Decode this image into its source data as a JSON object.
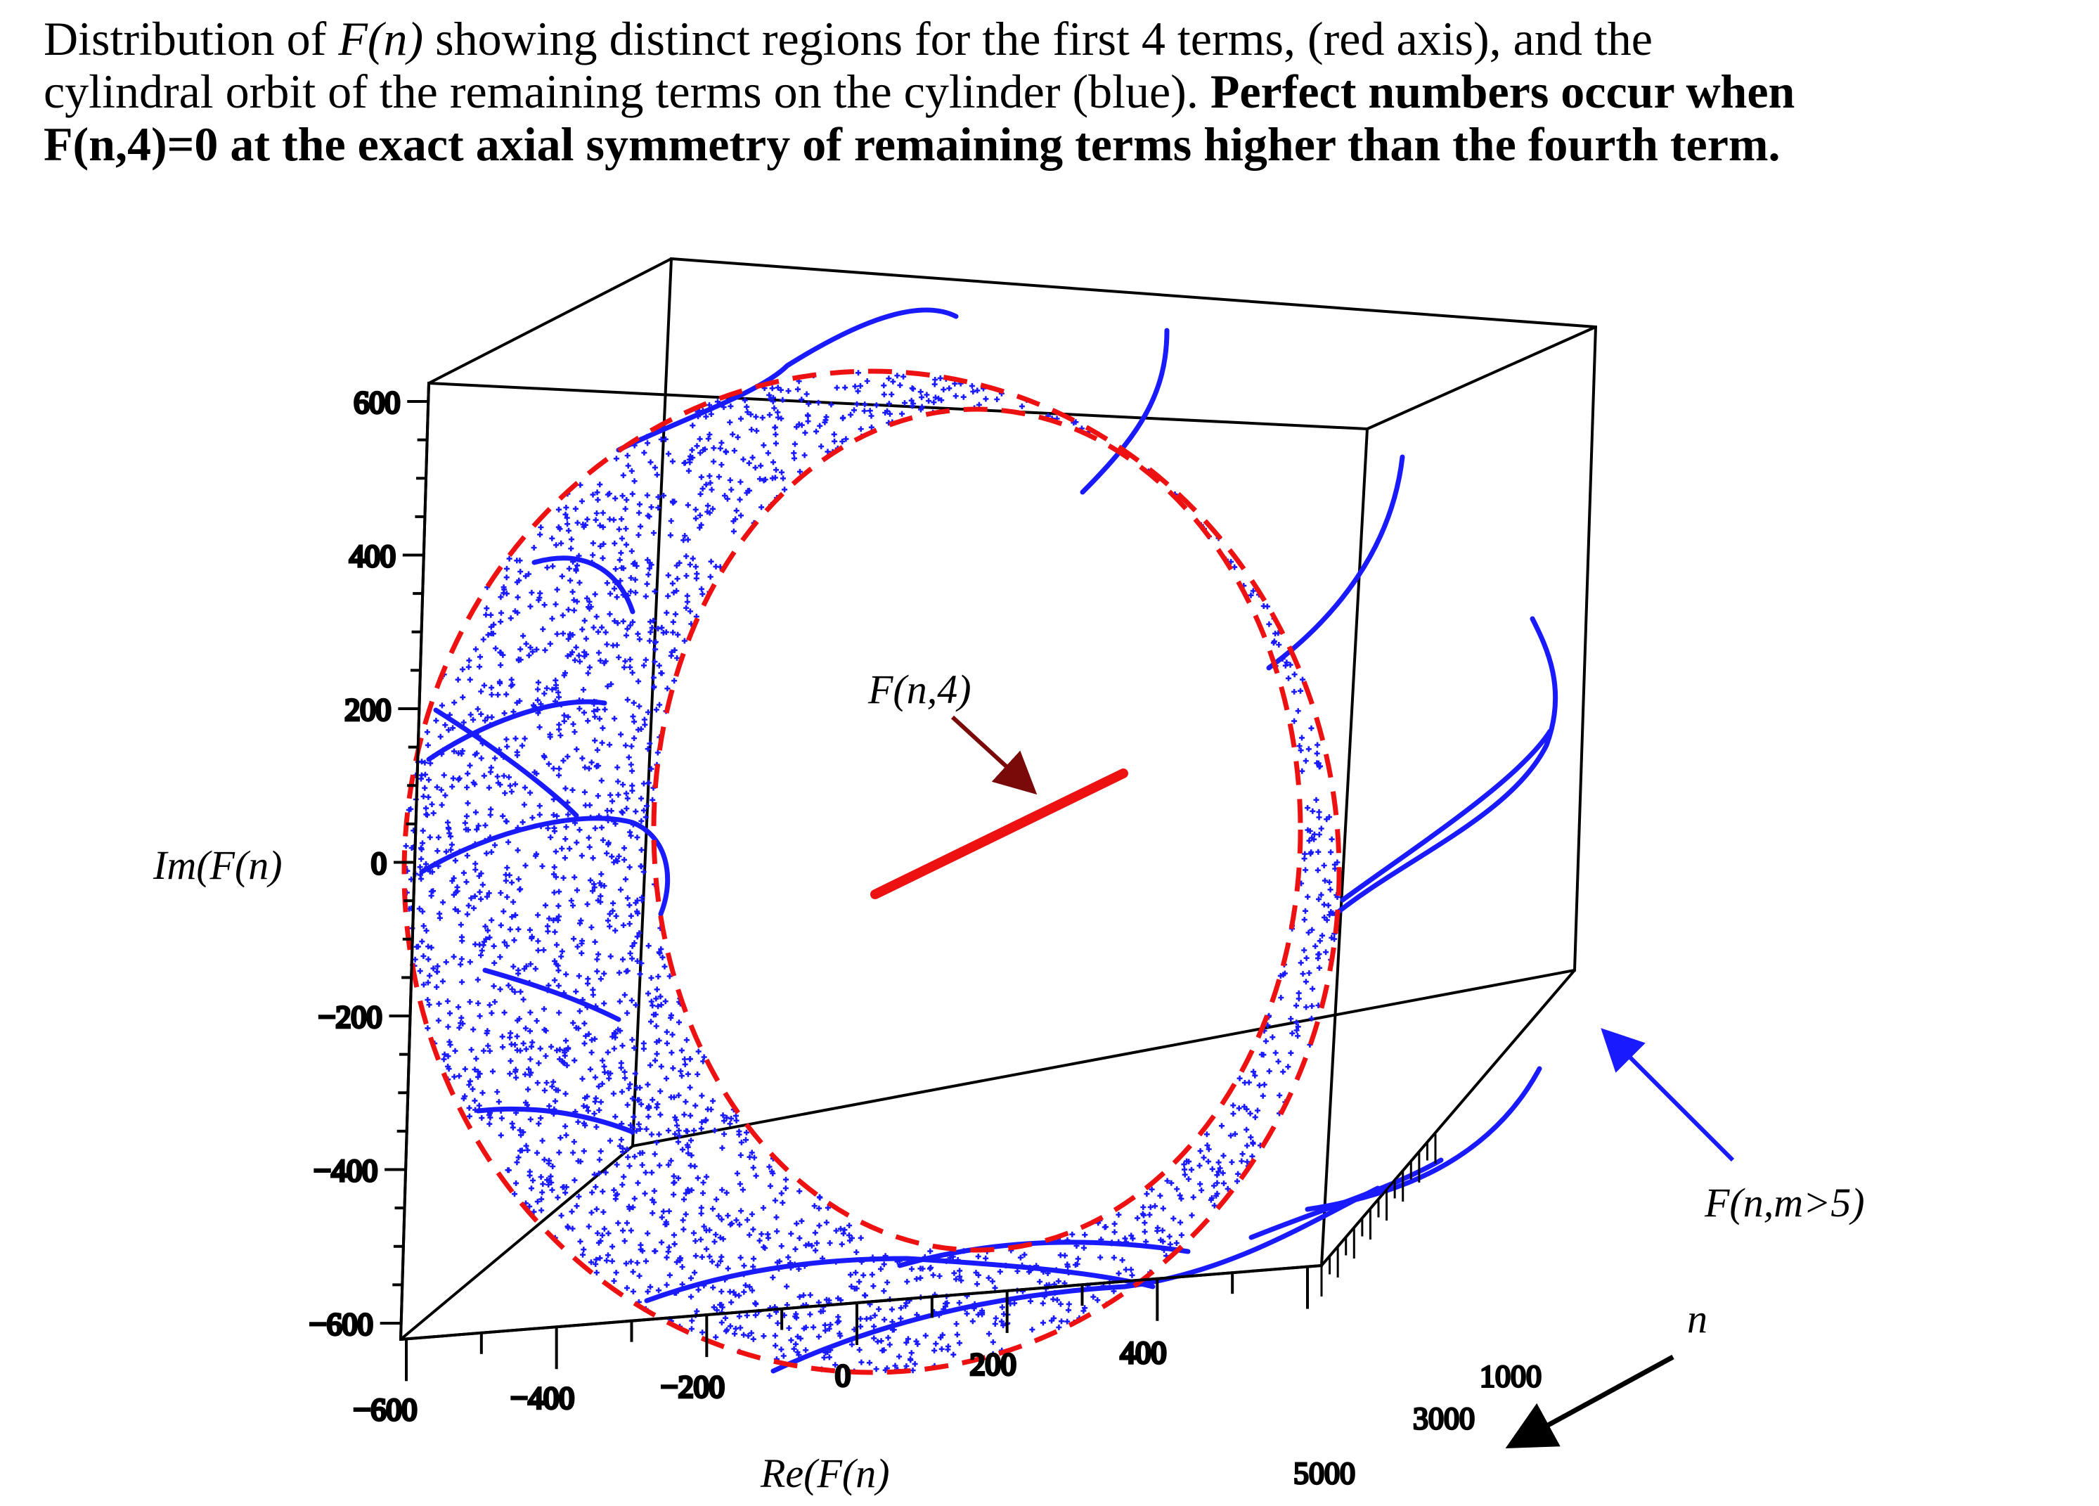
{
  "caption": {
    "line1_pre": "Distribution of ",
    "line1_fn": "F(n)",
    "line1_post": " showing distinct regions for the first 4 terms, (red axis), and the",
    "line2": "cylindral orbit of the remaining terms on the cylinder (blue).  ",
    "bold1": "Perfect numbers occur when",
    "bold2": "F(n,4)=0 at the exact axial symmetry of remaining terms higher than the fourth term."
  },
  "chart_data": {
    "type": "scatter",
    "projection": "3d",
    "ylabel": "Im(F(n)",
    "xlabel": "Re(F(n)",
    "zlabel": "n",
    "ylim": [
      -600,
      600
    ],
    "xlim": [
      -600,
      600
    ],
    "zlim": [
      0,
      5000
    ],
    "y_ticks": [
      "600",
      "400",
      "200",
      "0",
      "−200",
      "−400",
      "−600"
    ],
    "x_ticks": [
      "−600",
      "−400",
      "−200",
      "0",
      "200",
      "400"
    ],
    "z_ticks": [
      "1000",
      "3000",
      "5000"
    ],
    "series": [
      {
        "name": "F(n,4)",
        "color": "#ee1111",
        "kind": "line",
        "re_range": [
          -200,
          200
        ],
        "im_range": [
          -40,
          120
        ]
      },
      {
        "name": "F(n,m>5)",
        "color": "#1a1aff",
        "kind": "points",
        "outer_radius": 600,
        "inner_radius": 430,
        "n_points": 2400
      }
    ],
    "annotations": [
      {
        "text": "F(n,4)",
        "color": "#7a0a0a"
      },
      {
        "text": "F(n,m>5)",
        "color": "#0000ff"
      },
      {
        "text": "n",
        "color": "#000000"
      }
    ],
    "grid": false
  }
}
